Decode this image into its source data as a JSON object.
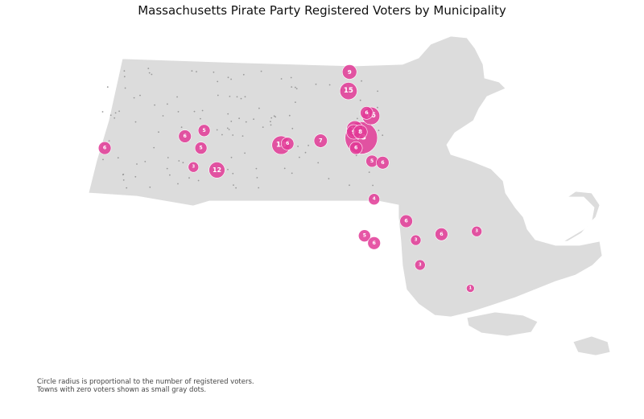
{
  "title": "Massachusetts Pirate Party Registered Voters by Municipality",
  "notes": {
    "line1": "Circle radius is proportional to the number of registered voters.",
    "line2": "Towns with zero voters shown as small gray dots."
  },
  "colors": {
    "bubble": "#e23a97",
    "land": "#dcdcdc",
    "zero_dot": "#999999",
    "background": "#ffffff"
  },
  "map_data": {
    "type": "proportional-symbol",
    "region": "Massachusetts",
    "voters_by_location": [
      {
        "lon": -73.45,
        "lat": 42.25,
        "value": 6
      },
      {
        "lon": -72.4,
        "lat": 42.1,
        "value": 12
      },
      {
        "lon": -72.62,
        "lat": 42.12,
        "value": 3
      },
      {
        "lon": -72.55,
        "lat": 42.25,
        "value": 5
      },
      {
        "lon": -72.7,
        "lat": 42.33,
        "value": 6
      },
      {
        "lon": -72.52,
        "lat": 42.37,
        "value": 5
      },
      {
        "lon": -71.8,
        "lat": 42.27,
        "value": 18
      },
      {
        "lon": -71.74,
        "lat": 42.28,
        "value": 6
      },
      {
        "lon": -71.05,
        "lat": 42.32,
        "value": 73
      },
      {
        "lon": -71.11,
        "lat": 42.38,
        "value": 13
      },
      {
        "lon": -71.12,
        "lat": 42.36,
        "value": 9
      },
      {
        "lon": -71.06,
        "lat": 42.36,
        "value": 8
      },
      {
        "lon": -71.17,
        "lat": 42.64,
        "value": 15
      },
      {
        "lon": -71.16,
        "lat": 42.77,
        "value": 9
      },
      {
        "lon": -70.96,
        "lat": 42.47,
        "value": 16
      },
      {
        "lon": -71.0,
        "lat": 42.49,
        "value": 6
      },
      {
        "lon": -71.43,
        "lat": 42.3,
        "value": 7
      },
      {
        "lon": -71.1,
        "lat": 42.25,
        "value": 6
      },
      {
        "lon": -70.95,
        "lat": 42.16,
        "value": 5
      },
      {
        "lon": -70.85,
        "lat": 42.15,
        "value": 6
      },
      {
        "lon": -70.93,
        "lat": 41.9,
        "value": 4
      },
      {
        "lon": -70.63,
        "lat": 41.75,
        "value": 6
      },
      {
        "lon": -71.02,
        "lat": 41.65,
        "value": 5
      },
      {
        "lon": -70.93,
        "lat": 41.6,
        "value": 6
      },
      {
        "lon": -70.54,
        "lat": 41.62,
        "value": 3
      },
      {
        "lon": -70.3,
        "lat": 41.66,
        "value": 6
      },
      {
        "lon": -69.97,
        "lat": 41.68,
        "value": 3
      },
      {
        "lon": -70.03,
        "lat": 41.29,
        "value": 1
      },
      {
        "lon": -70.5,
        "lat": 41.45,
        "value": 3
      }
    ]
  }
}
